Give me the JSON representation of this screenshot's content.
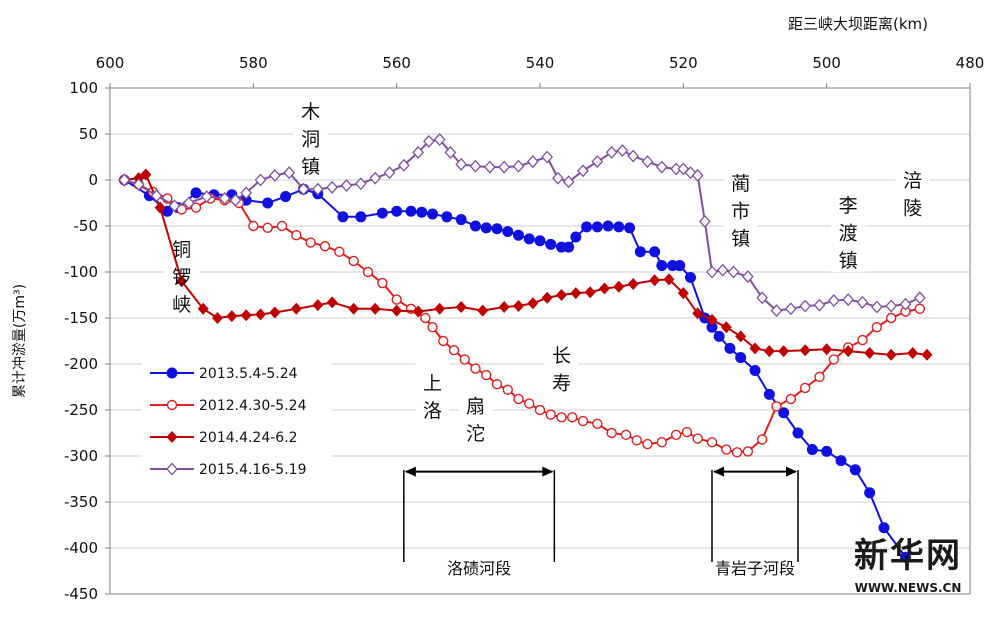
{
  "chart_data": {
    "type": "line",
    "x_axis_title": "距三峡大坝距离(km)",
    "y_axis_title": "累计冲淤量(万m³)",
    "xlim": [
      600,
      480
    ],
    "x_ticks": [
      600,
      580,
      560,
      540,
      520,
      500,
      480
    ],
    "ylim": [
      -450,
      100
    ],
    "y_ticks": [
      100,
      50,
      0,
      -50,
      -100,
      -150,
      -200,
      -250,
      -300,
      -350,
      -400,
      -450
    ],
    "grid": "horizontal",
    "legend_position": "left",
    "series": [
      {
        "name": "2013.5.4-5.24",
        "color": "#1010e0",
        "marker": "filled-circle",
        "points": [
          [
            598,
            0
          ],
          [
            594.5,
            -17
          ],
          [
            592,
            -34
          ],
          [
            590.5,
            -30
          ],
          [
            588,
            -14
          ],
          [
            585.5,
            -16
          ],
          [
            583,
            -16
          ],
          [
            581,
            -22
          ],
          [
            578,
            -25
          ],
          [
            575.5,
            -18
          ],
          [
            573,
            -10
          ],
          [
            571,
            -15
          ],
          [
            567.5,
            -40
          ],
          [
            565,
            -40
          ],
          [
            562,
            -36
          ],
          [
            560,
            -34
          ],
          [
            558,
            -34
          ],
          [
            556.5,
            -35
          ],
          [
            555,
            -37
          ],
          [
            553,
            -40
          ],
          [
            551,
            -43
          ],
          [
            549,
            -50
          ],
          [
            547.5,
            -52
          ],
          [
            546,
            -53
          ],
          [
            544.5,
            -56
          ],
          [
            543,
            -60
          ],
          [
            541.5,
            -64
          ],
          [
            540,
            -66
          ],
          [
            538.5,
            -70
          ],
          [
            537,
            -73
          ],
          [
            536,
            -73
          ],
          [
            535,
            -62
          ],
          [
            533.5,
            -51
          ],
          [
            532,
            -51
          ],
          [
            530.5,
            -50
          ],
          [
            529,
            -51
          ],
          [
            527.5,
            -52
          ],
          [
            526,
            -78
          ],
          [
            524,
            -78
          ],
          [
            523,
            -93
          ],
          [
            521.5,
            -93
          ],
          [
            520.5,
            -93
          ],
          [
            519,
            -106
          ],
          [
            517,
            -150
          ],
          [
            516,
            -160
          ],
          [
            515,
            -170
          ],
          [
            513.5,
            -183
          ],
          [
            512,
            -193
          ],
          [
            510,
            -207
          ],
          [
            508,
            -233
          ],
          [
            506,
            -253
          ],
          [
            504,
            -275
          ],
          [
            502,
            -293
          ],
          [
            500,
            -295
          ],
          [
            498,
            -305
          ],
          [
            496,
            -315
          ],
          [
            494,
            -340
          ],
          [
            492,
            -378
          ],
          [
            489,
            -410
          ]
        ]
      },
      {
        "name": "2012.4.30-5.24",
        "color": "#e02020",
        "marker": "open-circle",
        "points": [
          [
            598,
            0
          ],
          [
            596,
            -5
          ],
          [
            594,
            -13
          ],
          [
            592,
            -20
          ],
          [
            590,
            -32
          ],
          [
            588,
            -30
          ],
          [
            586,
            -20
          ],
          [
            584,
            -22
          ],
          [
            582,
            -25
          ],
          [
            580,
            -50
          ],
          [
            578,
            -52
          ],
          [
            576,
            -50
          ],
          [
            574,
            -60
          ],
          [
            572,
            -68
          ],
          [
            570,
            -72
          ],
          [
            568,
            -78
          ],
          [
            566,
            -88
          ],
          [
            564,
            -100
          ],
          [
            562,
            -112
          ],
          [
            560,
            -130
          ],
          [
            558,
            -140
          ],
          [
            556,
            -150
          ],
          [
            555,
            -160
          ],
          [
            553.5,
            -175
          ],
          [
            552,
            -185
          ],
          [
            550.5,
            -195
          ],
          [
            549,
            -205
          ],
          [
            547.5,
            -212
          ],
          [
            546,
            -222
          ],
          [
            544.5,
            -228
          ],
          [
            543,
            -238
          ],
          [
            541.5,
            -243
          ],
          [
            540,
            -250
          ],
          [
            538.5,
            -255
          ],
          [
            537,
            -258
          ],
          [
            535.5,
            -258
          ],
          [
            534,
            -262
          ],
          [
            532,
            -265
          ],
          [
            530,
            -275
          ],
          [
            528,
            -277
          ],
          [
            526.5,
            -283
          ],
          [
            525,
            -287
          ],
          [
            523,
            -285
          ],
          [
            521,
            -277
          ],
          [
            519.5,
            -274
          ],
          [
            518,
            -281
          ],
          [
            516,
            -285
          ],
          [
            514,
            -293
          ],
          [
            512.5,
            -296
          ],
          [
            511,
            -295
          ],
          [
            509,
            -282
          ],
          [
            507,
            -246
          ],
          [
            505,
            -238
          ],
          [
            503,
            -226
          ],
          [
            501,
            -214
          ],
          [
            499,
            -195
          ],
          [
            497,
            -182
          ],
          [
            495,
            -174
          ],
          [
            493,
            -160
          ],
          [
            491,
            -150
          ],
          [
            489,
            -143
          ],
          [
            487,
            -140
          ]
        ]
      },
      {
        "name": "2014.4.24-6.2",
        "color": "#c00000",
        "marker": "filled-diamond",
        "points": [
          [
            598,
            0
          ],
          [
            596,
            2
          ],
          [
            595,
            6
          ],
          [
            593,
            -30
          ],
          [
            590,
            -110
          ],
          [
            587,
            -140
          ],
          [
            585,
            -150
          ],
          [
            583,
            -148
          ],
          [
            581,
            -147
          ],
          [
            579,
            -146
          ],
          [
            577,
            -144
          ],
          [
            574,
            -140
          ],
          [
            571,
            -136
          ],
          [
            569,
            -133
          ],
          [
            566,
            -140
          ],
          [
            563,
            -140
          ],
          [
            560,
            -142
          ],
          [
            557,
            -143
          ],
          [
            554,
            -140
          ],
          [
            551,
            -138
          ],
          [
            548,
            -142
          ],
          [
            545,
            -138
          ],
          [
            543,
            -137
          ],
          [
            541,
            -134
          ],
          [
            539,
            -128
          ],
          [
            537,
            -125
          ],
          [
            535,
            -123
          ],
          [
            533,
            -122
          ],
          [
            531,
            -118
          ],
          [
            529,
            -116
          ],
          [
            527,
            -113
          ],
          [
            524,
            -109
          ],
          [
            522,
            -108
          ],
          [
            520,
            -123
          ],
          [
            518,
            -145
          ],
          [
            516,
            -152
          ],
          [
            514,
            -160
          ],
          [
            512,
            -170
          ],
          [
            510,
            -183
          ],
          [
            508,
            -186
          ],
          [
            506,
            -186
          ],
          [
            503,
            -185
          ],
          [
            500,
            -184
          ],
          [
            497,
            -186
          ],
          [
            494,
            -188
          ],
          [
            491,
            -190
          ],
          [
            488,
            -188
          ],
          [
            486,
            -190
          ]
        ]
      },
      {
        "name": "2015.4.16-5.19",
        "color": "#8050a0",
        "marker": "open-diamond",
        "points": [
          [
            598,
            0
          ],
          [
            596,
            -5
          ],
          [
            593.5,
            -17
          ],
          [
            591,
            -28
          ],
          [
            589,
            -25
          ],
          [
            586.5,
            -18
          ],
          [
            584,
            -20
          ],
          [
            582.5,
            -22
          ],
          [
            581,
            -14
          ],
          [
            579,
            0
          ],
          [
            577,
            5
          ],
          [
            575,
            8
          ],
          [
            573,
            -10
          ],
          [
            571,
            -10
          ],
          [
            569,
            -8
          ],
          [
            567,
            -6
          ],
          [
            565,
            -4
          ],
          [
            563,
            2
          ],
          [
            561,
            8
          ],
          [
            559,
            16
          ],
          [
            557,
            30
          ],
          [
            555.5,
            42
          ],
          [
            554,
            44
          ],
          [
            552.5,
            30
          ],
          [
            551,
            17
          ],
          [
            549,
            15
          ],
          [
            547,
            14
          ],
          [
            545,
            14
          ],
          [
            543,
            15
          ],
          [
            541,
            20
          ],
          [
            539,
            25
          ],
          [
            537.5,
            2
          ],
          [
            536,
            -2
          ],
          [
            534,
            10
          ],
          [
            532,
            20
          ],
          [
            530,
            30
          ],
          [
            528.5,
            32
          ],
          [
            527,
            26
          ],
          [
            525,
            20
          ],
          [
            523,
            14
          ],
          [
            521,
            12
          ],
          [
            520,
            12
          ],
          [
            519,
            8
          ],
          [
            518,
            5
          ],
          [
            517,
            -45
          ],
          [
            516,
            -100
          ],
          [
            514.5,
            -98
          ],
          [
            513,
            -100
          ],
          [
            511,
            -105
          ],
          [
            509,
            -128
          ],
          [
            507,
            -142
          ],
          [
            505,
            -140
          ],
          [
            503,
            -137
          ],
          [
            501,
            -136
          ],
          [
            499,
            -131
          ],
          [
            497,
            -130
          ],
          [
            495,
            -133
          ],
          [
            493,
            -138
          ],
          [
            491,
            -137
          ],
          [
            489,
            -135
          ],
          [
            487,
            -128
          ]
        ]
      }
    ],
    "annotations": [
      {
        "text": "木",
        "x": 572,
        "y": 75
      },
      {
        "text": "洞",
        "x": 572,
        "y": 45
      },
      {
        "text": "镇",
        "x": 572,
        "y": 15
      },
      {
        "text": "铜",
        "x": 590,
        "y": -75
      },
      {
        "text": "锣",
        "x": 590,
        "y": -105
      },
      {
        "text": "峡",
        "x": 590,
        "y": -135
      },
      {
        "text": "蔺",
        "x": 512,
        "y": -3
      },
      {
        "text": "市",
        "x": 512,
        "y": -33
      },
      {
        "text": "镇",
        "x": 512,
        "y": -63
      },
      {
        "text": "李",
        "x": 497,
        "y": -27
      },
      {
        "text": "渡",
        "x": 497,
        "y": -57
      },
      {
        "text": "镇",
        "x": 497,
        "y": -87
      },
      {
        "text": "涪",
        "x": 488,
        "y": 0
      },
      {
        "text": "陵",
        "x": 488,
        "y": -30
      },
      {
        "text": "上",
        "x": 555,
        "y": -220
      },
      {
        "text": "洛",
        "x": 555,
        "y": -250
      },
      {
        "text": "扇",
        "x": 549,
        "y": -245
      },
      {
        "text": "沱",
        "x": 549,
        "y": -275
      },
      {
        "text": "长",
        "x": 537,
        "y": -190
      },
      {
        "text": "寿",
        "x": 537,
        "y": -220
      }
    ],
    "reaches": [
      {
        "label": "洛碛河段",
        "from": 559,
        "to": 538
      },
      {
        "label": "青岩子河段",
        "from": 516,
        "to": 504
      }
    ]
  },
  "watermark": {
    "name": "新华网",
    "url": "WWW.NEWS.CN"
  }
}
